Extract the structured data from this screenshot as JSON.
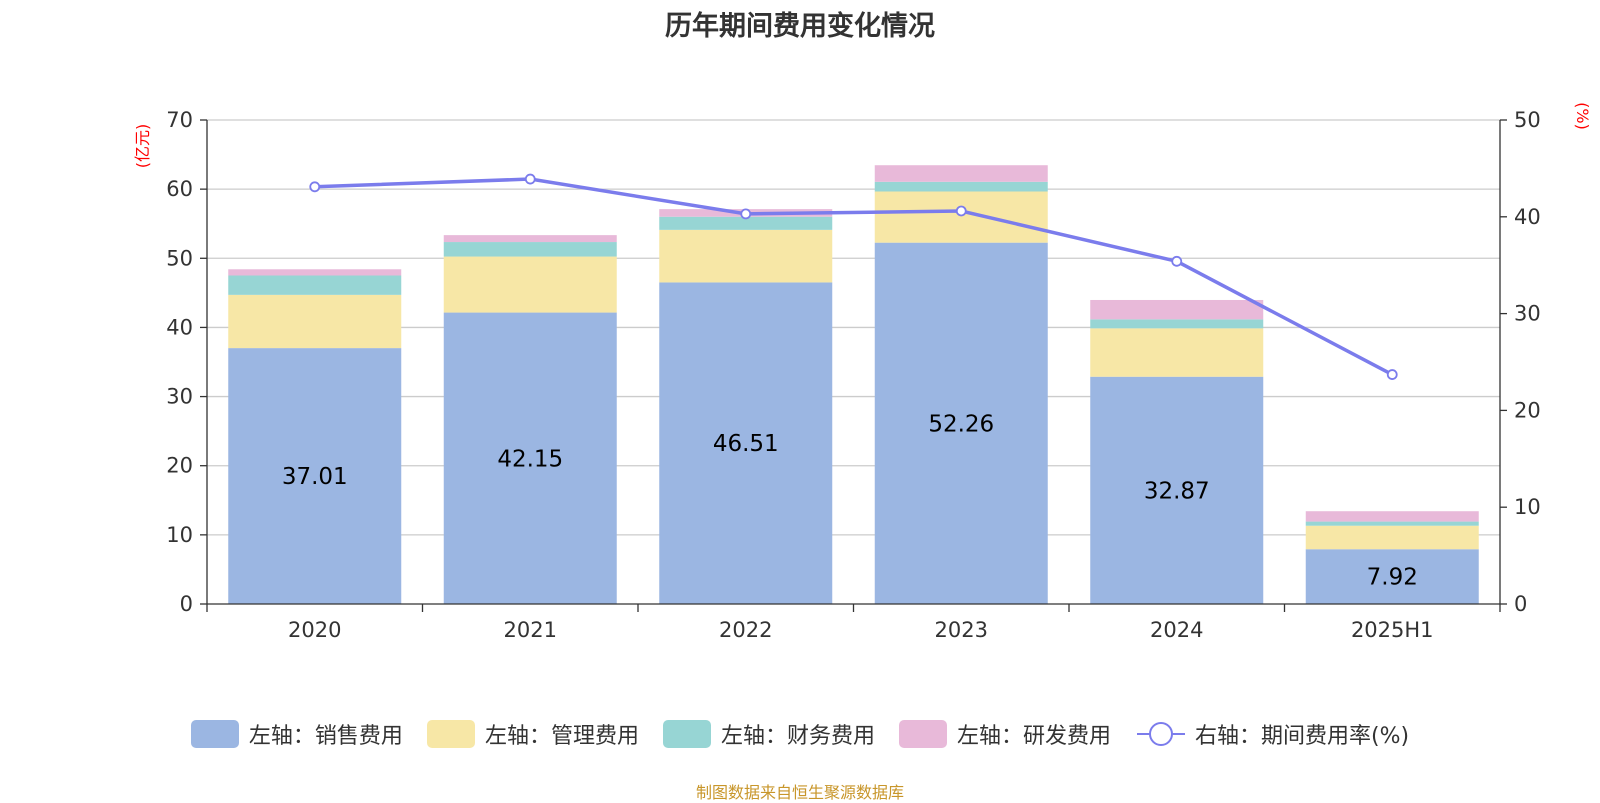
{
  "chart_data": {
    "type": "bar",
    "title": "历年期间费用变化情况",
    "categories": [
      "2020",
      "2021",
      "2022",
      "2023",
      "2024",
      "2025H1"
    ],
    "stacked": true,
    "left_axis": {
      "unit": "(亿元)",
      "ylim": [
        0,
        70
      ],
      "ticks": [
        0,
        10,
        20,
        30,
        40,
        50,
        60,
        70
      ]
    },
    "right_axis": {
      "unit": "(%)",
      "ylim": [
        0,
        50
      ],
      "ticks": [
        0,
        10,
        20,
        30,
        40,
        50
      ]
    },
    "series": [
      {
        "name": "左轴：销售费用",
        "axis": "left",
        "type": "bar",
        "color": "#9bb6e2",
        "values": [
          37.01,
          42.15,
          46.51,
          52.26,
          32.87,
          7.92
        ],
        "data_labels": [
          "37.01",
          "42.15",
          "46.51",
          "52.26",
          "32.87",
          "7.92"
        ]
      },
      {
        "name": "左轴：管理费用",
        "axis": "left",
        "type": "bar",
        "color": "#f7e7a6",
        "values": [
          7.7,
          8.1,
          7.6,
          7.4,
          7.0,
          3.4
        ]
      },
      {
        "name": "左轴：财务费用",
        "axis": "left",
        "type": "bar",
        "color": "#97d5d4",
        "values": [
          2.8,
          2.1,
          1.9,
          1.4,
          1.3,
          0.6
        ]
      },
      {
        "name": "左轴：研发费用",
        "axis": "left",
        "type": "bar",
        "color": "#e8b9d9",
        "values": [
          0.9,
          1.0,
          1.1,
          2.4,
          2.8,
          1.5
        ]
      },
      {
        "name": "右轴：期间费用率(%)",
        "axis": "right",
        "type": "line",
        "color": "#7b7cec",
        "values": [
          43.1,
          43.9,
          40.3,
          40.6,
          35.4,
          23.7
        ]
      }
    ],
    "grid": true,
    "legend_position": "bottom"
  },
  "source_note": "制图数据来自恒生聚源数据库"
}
